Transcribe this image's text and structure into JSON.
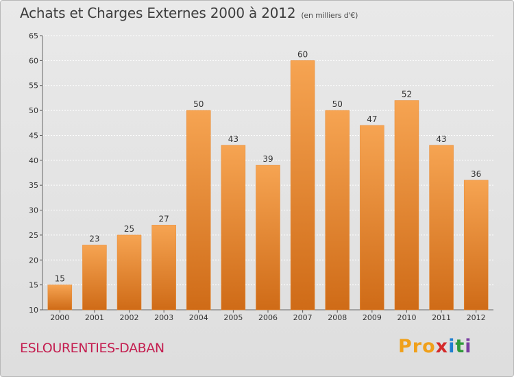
{
  "header": {
    "title": "Achats et Charges Externes 2000 à 2012",
    "subtitle": "(en milliers d'€)"
  },
  "footer": {
    "commune": "ESLOURENTIES-DABAN",
    "logo_parts": [
      "Pro",
      "x",
      "i",
      "t",
      "i"
    ]
  },
  "colors": {
    "bar_top": "#f6a452",
    "bar_bottom": "#cf6b17",
    "commune_text": "#c41d4f"
  },
  "chart_data": {
    "type": "bar",
    "title": "Achats et Charges Externes 2000 à 2012",
    "subtitle": "(en milliers d'€)",
    "categories": [
      "2000",
      "2001",
      "2002",
      "2003",
      "2004",
      "2005",
      "2006",
      "2007",
      "2008",
      "2009",
      "2010",
      "2011",
      "2012"
    ],
    "values": [
      15,
      23,
      25,
      27,
      50,
      43,
      39,
      60,
      50,
      47,
      52,
      43,
      36
    ],
    "ylim": [
      10,
      65
    ],
    "yticks": [
      10,
      15,
      20,
      25,
      30,
      35,
      40,
      45,
      50,
      55,
      60,
      65
    ],
    "grid": true,
    "legend": "none"
  }
}
